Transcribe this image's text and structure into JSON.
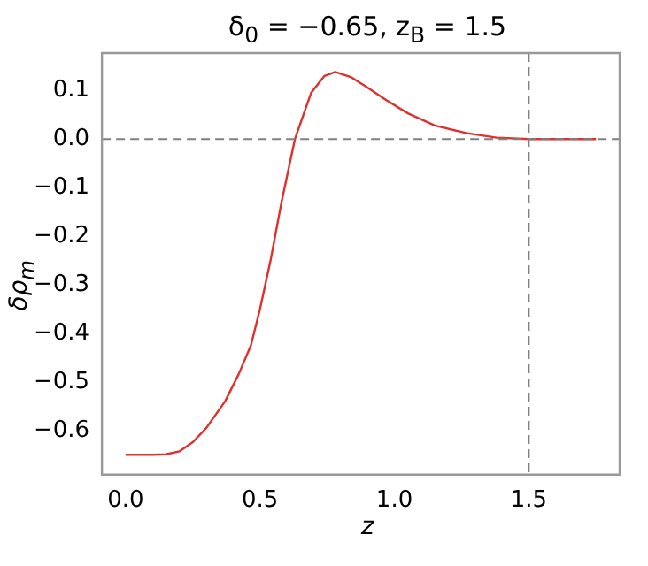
{
  "chart_data": {
    "type": "line",
    "title": "δ$_{0}$ = −0.65,  z$_{B}$ = 1.5",
    "xlabel": "z",
    "ylabel": "δρ$_{m}$",
    "series": [
      {
        "color": "#e0302c",
        "x": [
          0,
          0.05,
          0.1,
          0.15,
          0.2,
          0.25,
          0.3,
          0.37,
          0.42,
          0.466,
          0.5,
          0.54,
          0.58,
          0.63,
          0.69,
          0.74,
          0.78,
          0.84,
          0.9,
          0.97,
          1.05,
          1.15,
          1.27,
          1.38,
          1.5,
          1.6,
          1.75
        ],
        "values": [
          -0.65,
          -0.65,
          -0.65,
          -0.649,
          -0.643,
          -0.624,
          -0.595,
          -0.54,
          -0.485,
          -0.425,
          -0.35,
          -0.248,
          -0.13,
          0,
          0.095,
          0.13,
          0.138,
          0.127,
          0.106,
          0.08,
          0.053,
          0.028,
          0.012,
          0.003,
          0,
          0,
          0
        ]
      }
    ],
    "xlim": [
      -0.088,
      1.838
    ],
    "ylim": [
      -0.691,
      0.177
    ],
    "xticks": [
      {
        "value": 0,
        "label": "0.0"
      },
      0.5,
      {
        "value": 1,
        "label": "1.0"
      },
      1.5
    ],
    "yticks": [
      -0.6,
      -0.5,
      -0.4,
      -0.3,
      -0.2,
      -0.1,
      {
        "value": 0,
        "label": "0.0"
      },
      0.1
    ],
    "ref_lines": [
      {
        "axis": "y",
        "value": 0,
        "color": "#808080",
        "line_style": "dashed"
      },
      {
        "axis": "x",
        "value": 1.5,
        "color": "#808080",
        "line_style": "dashed"
      }
    ],
    "grid": false,
    "legend": false,
    "marker": "none",
    "line_style": "solid"
  }
}
